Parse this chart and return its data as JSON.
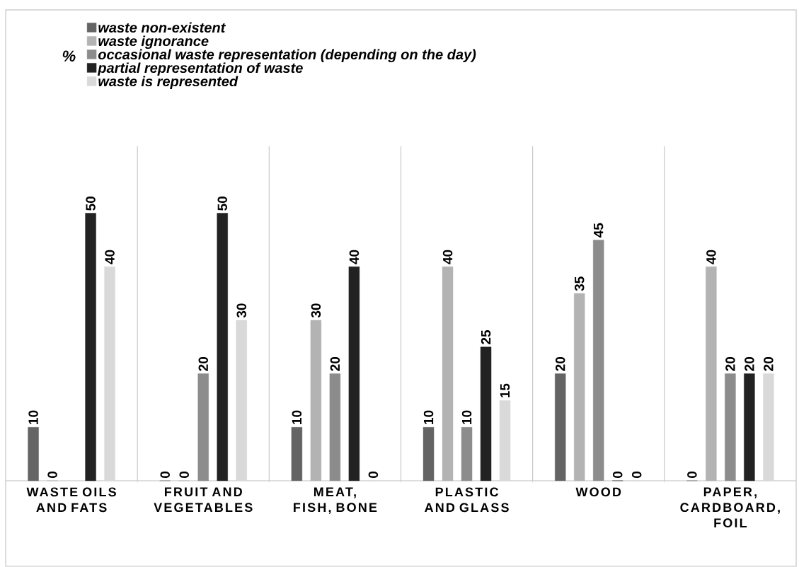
{
  "chart_data": {
    "type": "bar",
    "annotations": [
      "%"
    ],
    "categories": [
      "WASTE OILS AND FATS",
      "FRUIT AND VEGETABLES",
      "MEAT, FISH, BONE",
      "PLASTIC AND GLASS",
      "WOOD",
      "PAPER, CARDBOARD, FOIL"
    ],
    "series": [
      {
        "name": "waste non-existent",
        "color": "#646464",
        "values": [
          10,
          0,
          10,
          10,
          20,
          0
        ]
      },
      {
        "name": "waste ignorance",
        "color": "#b3b3b3",
        "values": [
          0,
          0,
          30,
          40,
          35,
          40
        ]
      },
      {
        "name": "occasional waste representation (depending on the day)",
        "color": "#8c8c8c",
        "values": [
          null,
          20,
          20,
          10,
          45,
          20
        ]
      },
      {
        "name": "partial representation of waste",
        "color": "#222222",
        "values": [
          50,
          50,
          40,
          25,
          0,
          20
        ]
      },
      {
        "name": "waste is represented",
        "color": "#d9d9d9",
        "values": [
          40,
          30,
          0,
          15,
          0,
          20
        ]
      }
    ],
    "data_labels": true,
    "legend": "top"
  }
}
